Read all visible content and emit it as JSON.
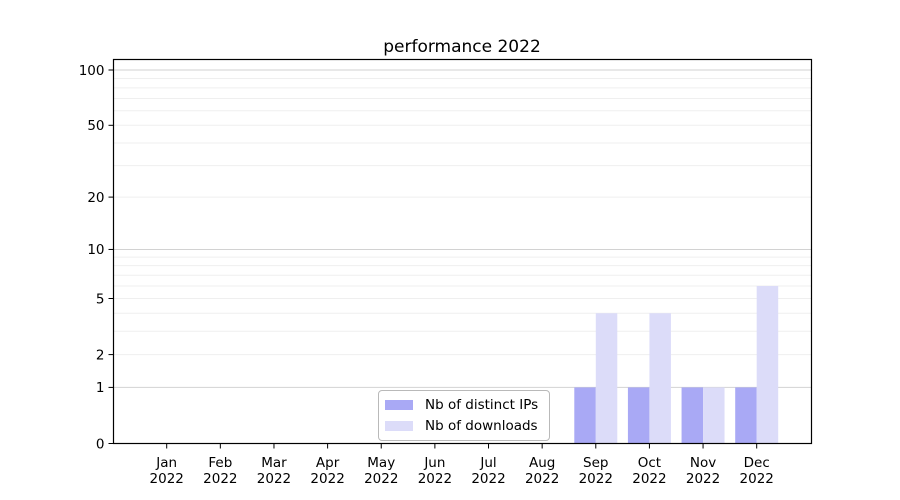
{
  "chart_data": {
    "type": "bar",
    "title": "performance 2022",
    "categories": [
      "Jan",
      "Feb",
      "Mar",
      "Apr",
      "May",
      "Jun",
      "Jul",
      "Aug",
      "Sep",
      "Oct",
      "Nov",
      "Dec"
    ],
    "category_year": "2022",
    "series": [
      {
        "name": "Nb of distinct IPs",
        "color": "#a9a9f5",
        "values": [
          0,
          0,
          0,
          0,
          0,
          0,
          0,
          0,
          1,
          1,
          1,
          1
        ]
      },
      {
        "name": "Nb of downloads",
        "color": "#dcdcf9",
        "values": [
          0,
          0,
          0,
          0,
          0,
          0,
          0,
          0,
          4,
          4,
          1,
          6
        ]
      }
    ],
    "y_axis": {
      "scale": "log1p",
      "tick_values": [
        0,
        1,
        2,
        5,
        10,
        20,
        50,
        100
      ],
      "tick_labels": [
        "0",
        "1",
        "2",
        "5",
        "10",
        "20",
        "50",
        "100"
      ],
      "major_gridlines": [
        1,
        10,
        100
      ],
      "minor_gridlines": [
        2,
        3,
        4,
        5,
        6,
        7,
        8,
        9,
        20,
        30,
        40,
        50,
        60,
        70,
        80,
        90
      ],
      "ylim": [
        0,
        114
      ]
    },
    "legend_position": "lower center",
    "grid": true,
    "colors": {
      "major_gridline": "#d2d2d2",
      "minor_gridline": "#efefef",
      "spine": "#000000",
      "background": "#ffffff"
    }
  }
}
